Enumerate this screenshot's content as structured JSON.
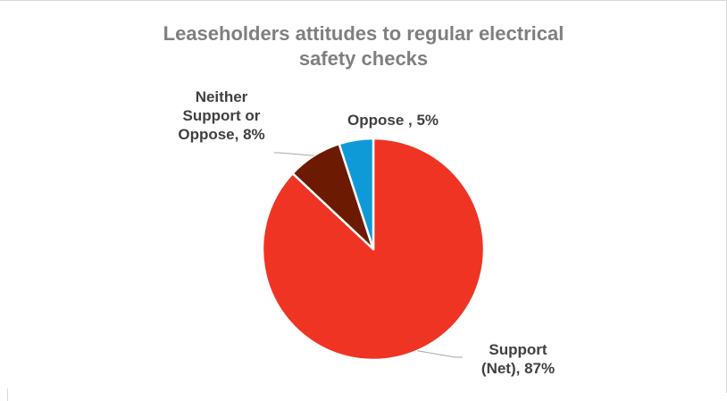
{
  "chart_data": {
    "type": "pie",
    "title": "Leaseholders attitudes to regular electrical\nsafety checks",
    "slices": [
      {
        "label": "Support (Net)",
        "value": 87,
        "color": "#ef3424",
        "display": "Support\n(Net), 87%"
      },
      {
        "label": "Neither Support or Oppose",
        "value": 8,
        "color": "#6d1a02",
        "display": "Neither\nSupport or\nOppose, 8%"
      },
      {
        "label": "Oppose",
        "value": 5,
        "color": "#0e9ad7",
        "display": "Oppose , 5%"
      }
    ],
    "legend": "none"
  }
}
